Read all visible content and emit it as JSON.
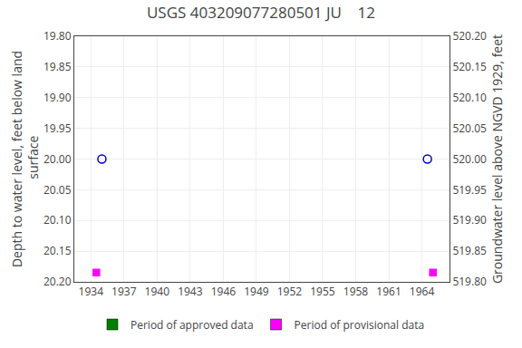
{
  "chart_data": {
    "type": "scatter",
    "title": "USGS 403209077280501 JU    12",
    "ylabel": "Depth to water level, feet below land\n surface",
    "y2label": "Groundwater level above NGVD 1929, feet",
    "xlim": [
      1932.5,
      1966.5
    ],
    "xticks": [
      1934,
      1937,
      1940,
      1943,
      1946,
      1949,
      1952,
      1955,
      1958,
      1961,
      1964
    ],
    "ylim": [
      20.2,
      19.8
    ],
    "yticks": [
      {
        "value": 19.8,
        "label": "19.80"
      },
      19.85,
      {
        "value": 19.9,
        "label": "19.90"
      },
      19.95,
      {
        "value": 20.0,
        "label": "20.00"
      },
      20.05,
      {
        "value": 20.1,
        "label": "20.10"
      },
      20.15,
      {
        "value": 20.2,
        "label": "20.20"
      }
    ],
    "y2lim": [
      519.8,
      520.2
    ],
    "y2ticks": [
      {
        "value": 519.8,
        "label": "519.80"
      },
      519.85,
      {
        "value": 519.9,
        "label": "519.90"
      },
      519.95,
      {
        "value": 520.0,
        "label": "520.00"
      },
      520.05,
      {
        "value": 520.1,
        "label": "520.10"
      },
      520.15,
      {
        "value": 520.2,
        "label": "520.20"
      }
    ],
    "grid": true,
    "legend": "bottom",
    "series": [
      {
        "x": [
          1935.0,
          1964.5
        ],
        "values": [
          20.0,
          20.0
        ],
        "color": "#0000cc",
        "marker": "circle_open"
      },
      {
        "x": [
          1934.5,
          1965.0
        ],
        "values": [
          20.185,
          20.185
        ],
        "color": "#ff00ff",
        "marker": "square"
      },
      {
        "name": "Period of approved data",
        "color": "#008000",
        "marker": "square",
        "x": [],
        "values": []
      },
      {
        "name": "Period of provisional data",
        "color": "#ff00ff",
        "marker": "square",
        "x": [],
        "values": []
      }
    ]
  }
}
